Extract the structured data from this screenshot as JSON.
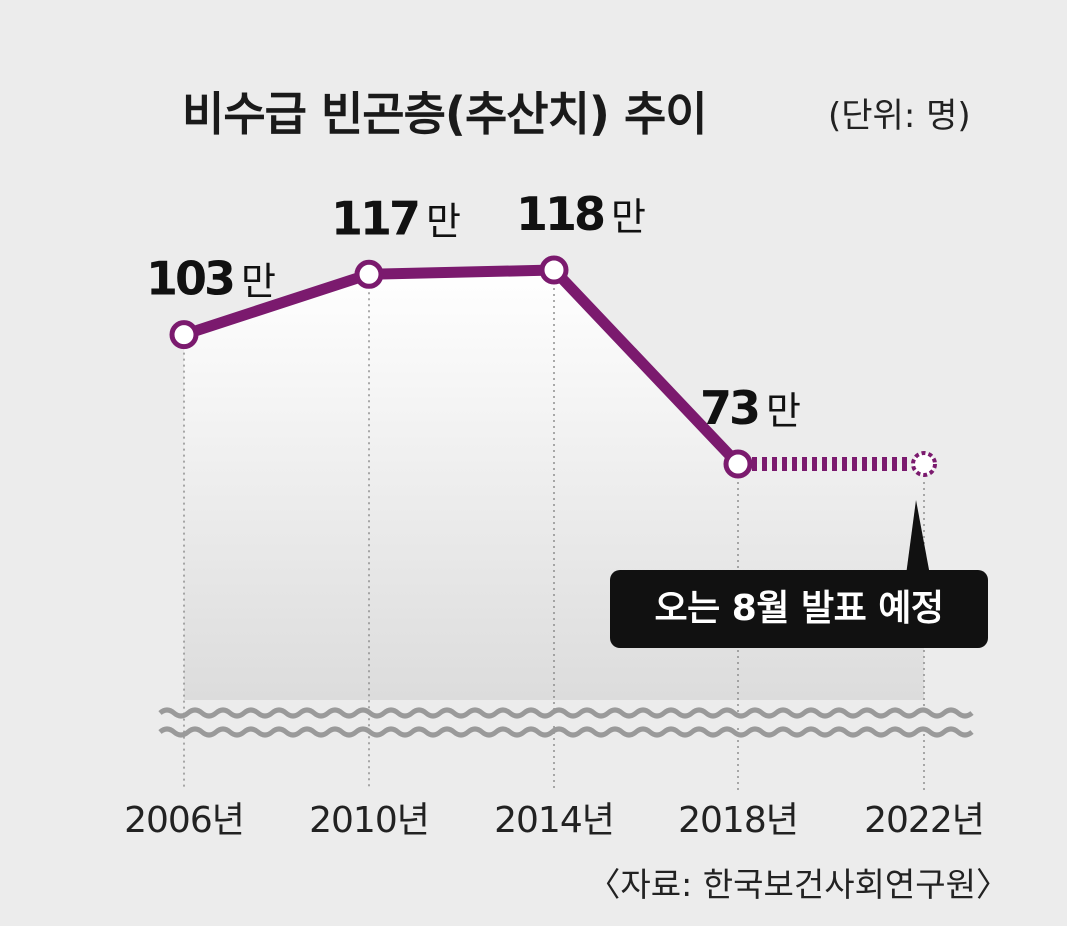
{
  "header": {
    "title": "비수급 빈곤층(추산치) 추이",
    "unit": "(단위: 명)"
  },
  "callout": {
    "text": "오는 8월 발표 예정"
  },
  "source": "〈자료: 한국보건사회연구원〉",
  "colors": {
    "line": "#7b1a6e",
    "background": "#ececec",
    "callout_bg": "#111111",
    "grid": "#888888"
  },
  "chart_data": {
    "type": "line",
    "title": "비수급 빈곤층(추산치) 추이",
    "unit_label": "(단위: 명)",
    "categories": [
      "2006년",
      "2010년",
      "2014년",
      "2018년",
      "2022년"
    ],
    "series": [
      {
        "values": [
          103,
          117,
          118,
          73,
          null
        ],
        "value_labels": [
          "103만",
          "117만",
          "118만",
          "73만",
          ""
        ],
        "projected_from": "2018년",
        "projected_to": "2022년",
        "projected_value": 73
      }
    ],
    "ylim": [
      0,
      130
    ],
    "axis_break": true,
    "grid": false
  }
}
